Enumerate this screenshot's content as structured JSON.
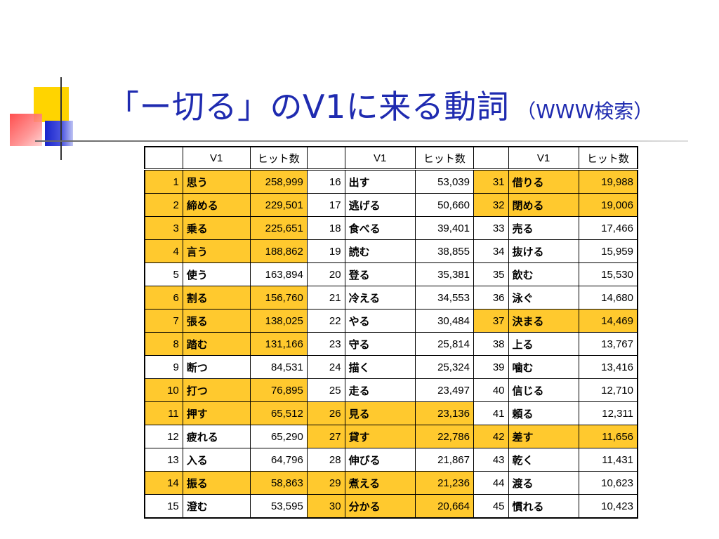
{
  "title": {
    "main": "「ー切る」のV1に来る動詞",
    "sub": "（WWW検索）"
  },
  "table": {
    "headers": [
      "",
      "V1",
      "ヒット数",
      "",
      "V1",
      "ヒット数",
      "",
      "V1",
      "ヒット数"
    ],
    "highlight_color": "#ffc92e",
    "rows": [
      [
        {
          "n": "1",
          "v": "思う",
          "h": "258,999",
          "hl": true
        },
        {
          "n": "16",
          "v": "出す",
          "h": "53,039",
          "hl": false
        },
        {
          "n": "31",
          "v": "借りる",
          "h": "19,988",
          "hl": true
        }
      ],
      [
        {
          "n": "2",
          "v": "締める",
          "h": "229,501",
          "hl": true
        },
        {
          "n": "17",
          "v": "逃げる",
          "h": "50,660",
          "hl": false
        },
        {
          "n": "32",
          "v": "閉める",
          "h": "19,006",
          "hl": true
        }
      ],
      [
        {
          "n": "3",
          "v": "乗る",
          "h": "225,651",
          "hl": true
        },
        {
          "n": "18",
          "v": "食べる",
          "h": "39,401",
          "hl": false
        },
        {
          "n": "33",
          "v": "売る",
          "h": "17,466",
          "hl": false
        }
      ],
      [
        {
          "n": "4",
          "v": "言う",
          "h": "188,862",
          "hl": true
        },
        {
          "n": "19",
          "v": "読む",
          "h": "38,855",
          "hl": false
        },
        {
          "n": "34",
          "v": "抜ける",
          "h": "15,959",
          "hl": false
        }
      ],
      [
        {
          "n": "5",
          "v": "使う",
          "h": "163,894",
          "hl": false
        },
        {
          "n": "20",
          "v": "登る",
          "h": "35,381",
          "hl": false
        },
        {
          "n": "35",
          "v": "飲む",
          "h": "15,530",
          "hl": false
        }
      ],
      [
        {
          "n": "6",
          "v": "割る",
          "h": "156,760",
          "hl": true
        },
        {
          "n": "21",
          "v": "冷える",
          "h": "34,553",
          "hl": false
        },
        {
          "n": "36",
          "v": "泳ぐ",
          "h": "14,680",
          "hl": false
        }
      ],
      [
        {
          "n": "7",
          "v": "張る",
          "h": "138,025",
          "hl": true
        },
        {
          "n": "22",
          "v": "やる",
          "h": "30,484",
          "hl": false
        },
        {
          "n": "37",
          "v": "決まる",
          "h": "14,469",
          "hl": true
        }
      ],
      [
        {
          "n": "8",
          "v": "踏む",
          "h": "131,166",
          "hl": true
        },
        {
          "n": "23",
          "v": "守る",
          "h": "25,814",
          "hl": false
        },
        {
          "n": "38",
          "v": "上る",
          "h": "13,767",
          "hl": false
        }
      ],
      [
        {
          "n": "9",
          "v": "断つ",
          "h": "84,531",
          "hl": false
        },
        {
          "n": "24",
          "v": "描く",
          "h": "25,324",
          "hl": false
        },
        {
          "n": "39",
          "v": "噛む",
          "h": "13,416",
          "hl": false
        }
      ],
      [
        {
          "n": "10",
          "v": "打つ",
          "h": "76,895",
          "hl": true
        },
        {
          "n": "25",
          "v": "走る",
          "h": "23,497",
          "hl": false
        },
        {
          "n": "40",
          "v": "信じる",
          "h": "12,710",
          "hl": false
        }
      ],
      [
        {
          "n": "11",
          "v": "押す",
          "h": "65,512",
          "hl": true
        },
        {
          "n": "26",
          "v": "見る",
          "h": "23,136",
          "hl": true
        },
        {
          "n": "41",
          "v": "頼る",
          "h": "12,311",
          "hl": false
        }
      ],
      [
        {
          "n": "12",
          "v": "疲れる",
          "h": "65,290",
          "hl": false
        },
        {
          "n": "27",
          "v": "貸す",
          "h": "22,786",
          "hl": true
        },
        {
          "n": "42",
          "v": "差す",
          "h": "11,656",
          "hl": true
        }
      ],
      [
        {
          "n": "13",
          "v": "入る",
          "h": "64,796",
          "hl": false
        },
        {
          "n": "28",
          "v": "伸びる",
          "h": "21,867",
          "hl": false
        },
        {
          "n": "43",
          "v": "乾く",
          "h": "11,431",
          "hl": false
        }
      ],
      [
        {
          "n": "14",
          "v": "振る",
          "h": "58,863",
          "hl": true
        },
        {
          "n": "29",
          "v": "煮える",
          "h": "21,236",
          "hl": true
        },
        {
          "n": "44",
          "v": "渡る",
          "h": "10,623",
          "hl": false
        }
      ],
      [
        {
          "n": "15",
          "v": "澄む",
          "h": "53,595",
          "hl": false
        },
        {
          "n": "30",
          "v": "分かる",
          "h": "20,664",
          "hl": true
        },
        {
          "n": "45",
          "v": "慣れる",
          "h": "10,423",
          "hl": false
        }
      ]
    ]
  }
}
